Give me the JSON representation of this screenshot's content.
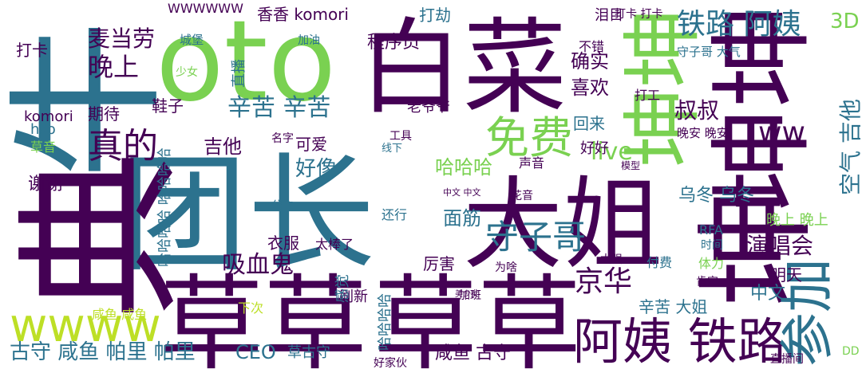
{
  "words": [
    {
      "text": "团长",
      "color": "#2c728e"
    },
    {
      "text": "草草",
      "color": "#440154"
    },
    {
      "text": "草草",
      "color": "#440154"
    },
    {
      "text": "白菜",
      "color": "#440154"
    },
    {
      "text": "oto",
      "color": "#7ad151"
    },
    {
      "text": "大姐",
      "color": "#440154"
    },
    {
      "text": "牛",
      "color": "#2c728e"
    },
    {
      "text": "典",
      "color": "#440154"
    },
    {
      "text": "坤坤",
      "color": "#7ad151"
    },
    {
      "text": "坤坤",
      "color": "#440154"
    },
    {
      "text": "坤",
      "color": "#440154"
    },
    {
      "text": "阿姨 铁路",
      "color": "#440154"
    },
    {
      "text": "参加",
      "color": "#2c728e"
    },
    {
      "text": "wwww",
      "color": "#bddf26"
    },
    {
      "text": "免费",
      "color": "#7ad151"
    },
    {
      "text": "铁路 阿姨",
      "color": "#2c728e"
    },
    {
      "text": "真的",
      "color": "#440154"
    },
    {
      "text": "守子哥",
      "color": "#2c728e"
    },
    {
      "text": "live",
      "color": "#7ad151"
    },
    {
      "text": "ww",
      "color": "#440154"
    },
    {
      "text": "京华",
      "color": "#440154"
    },
    {
      "text": "晚上",
      "color": "#440154"
    },
    {
      "text": "麦当劳",
      "color": "#440154"
    },
    {
      "text": "辛苦 辛苦",
      "color": "#2c728e"
    },
    {
      "text": "吸血鬼",
      "color": "#440154"
    },
    {
      "text": "演唱会",
      "color": "#440154"
    },
    {
      "text": "空气 吉他",
      "color": "#2c728e"
    },
    {
      "text": "3D",
      "color": "#7ad151"
    },
    {
      "text": "CEO",
      "color": "#2c728e"
    },
    {
      "text": "古守 咸鱼 帕里 帕里",
      "color": "#2c728e"
    },
    {
      "text": "咸鱼 古守",
      "color": "#440154"
    },
    {
      "text": "好像",
      "color": "#2c728e"
    },
    {
      "text": "哈哈哈",
      "color": "#7ad151"
    },
    {
      "text": "吉他",
      "color": "#440154"
    },
    {
      "text": "谢谢",
      "color": "#440154"
    },
    {
      "text": "喜欢",
      "color": "#440154"
    },
    {
      "text": "确实",
      "color": "#440154"
    },
    {
      "text": "叔叔",
      "color": "#440154"
    },
    {
      "text": "程序员",
      "color": "#440154"
    },
    {
      "text": "香香 komori",
      "color": "#440154"
    },
    {
      "text": "面筋",
      "color": "#2c728e"
    },
    {
      "text": "厉害",
      "color": "#440154"
    },
    {
      "text": "明天",
      "color": "#440154"
    },
    {
      "text": "中文",
      "color": "#2c728e"
    },
    {
      "text": "乌冬 乌冬",
      "color": "#2c728e"
    },
    {
      "text": "打劫",
      "color": "#2c728e"
    },
    {
      "text": "打卡",
      "color": "#440154"
    },
    {
      "text": "期待",
      "color": "#440154"
    },
    {
      "text": "鞋子",
      "color": "#440154"
    },
    {
      "text": "衣服",
      "color": "#440154"
    },
    {
      "text": "刷新",
      "color": "#440154"
    },
    {
      "text": "komori",
      "color": "#440154"
    },
    {
      "text": "可爱",
      "color": "#440154"
    },
    {
      "text": "直播",
      "color": "#2c728e"
    },
    {
      "text": "回来",
      "color": "#2c728e"
    },
    {
      "text": "好好",
      "color": "#440154"
    },
    {
      "text": "感觉",
      "color": "#2c728e"
    },
    {
      "text": "WWWWWW",
      "color": "#440154"
    },
    {
      "text": "下次",
      "color": "#bddf26"
    },
    {
      "text": "辛苦 大姐",
      "color": "#2c728e"
    },
    {
      "text": "草古守",
      "color": "#2c728e"
    },
    {
      "text": "好家伙",
      "color": "#440154"
    },
    {
      "text": "打卡 打卡",
      "color": "#440154"
    },
    {
      "text": "泪目",
      "color": "#440154"
    },
    {
      "text": "不错",
      "color": "#440154"
    },
    {
      "text": "晚上 晚上",
      "color": "#7ad151"
    },
    {
      "text": "守子哥 大气",
      "color": "#2c728e"
    },
    {
      "text": "老爷爷",
      "color": "#440154"
    },
    {
      "text": "太棒了",
      "color": "#440154"
    },
    {
      "text": "咸鱼 咸鱼",
      "color": "#bddf26"
    },
    {
      "text": "哈哈哈哈 哈哈哈哈",
      "color": "#2c728e"
    },
    {
      "text": "哈哈哈哈",
      "color": "#2c728e"
    },
    {
      "text": "hso",
      "color": "#2c728e"
    },
    {
      "text": "草音",
      "color": "#7ad151"
    },
    {
      "text": "付费",
      "color": "#2c728e"
    },
    {
      "text": "时间",
      "color": "#2c728e"
    },
    {
      "text": "RFA",
      "color": "#2c728e"
    },
    {
      "text": "体力",
      "color": "#7ad151"
    },
    {
      "text": "肯定",
      "color": "#440154"
    },
    {
      "text": "直播间",
      "color": "#440154"
    },
    {
      "text": "DD",
      "color": "#7ad151"
    },
    {
      "text": "加班",
      "color": "#440154"
    },
    {
      "text": "为啥",
      "color": "#440154"
    },
    {
      "text": "花音",
      "color": "#440154"
    },
    {
      "text": "声音",
      "color": "#440154"
    },
    {
      "text": "中文 中文",
      "color": "#440154"
    },
    {
      "text": "少女",
      "color": "#7ad151"
    },
    {
      "text": "城堡",
      "color": "#2c728e"
    },
    {
      "text": "加油",
      "color": "#2c728e"
    },
    {
      "text": "公主",
      "color": "#2c728e"
    },
    {
      "text": "名字",
      "color": "#440154"
    },
    {
      "text": "模型",
      "color": "#440154"
    },
    {
      "text": "工具",
      "color": "#440154"
    },
    {
      "text": "线下",
      "color": "#2c728e"
    },
    {
      "text": "还行",
      "color": "#2c728e"
    },
    {
      "text": "晚安 晚安",
      "color": "#440154"
    },
    {
      "text": "打工",
      "color": "#440154"
    },
    {
      "text": "美少女",
      "color": "#440154"
    },
    {
      "text": "太强",
      "color": "#440154"
    }
  ]
}
